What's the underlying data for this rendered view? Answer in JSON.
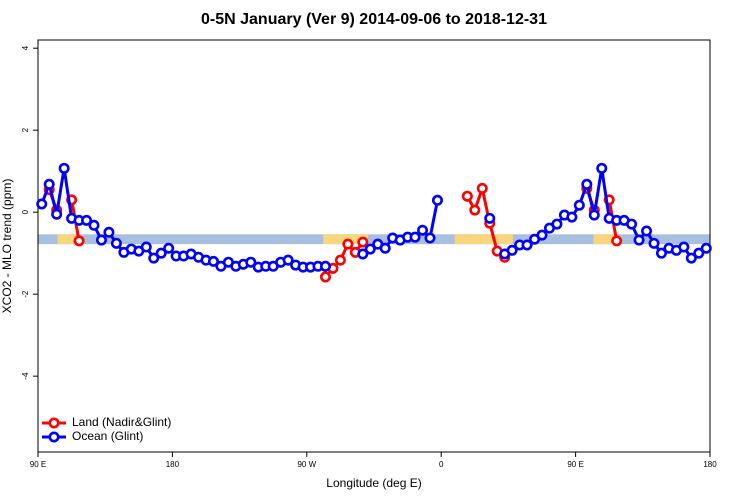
{
  "chart_data": {
    "type": "line",
    "title": "0-5N January (Ver 9)   2014-09-06 to 2018-12-31",
    "x_label": "Longitude (deg E)",
    "y_label": "XCO2 - MLO trend (ppm)",
    "xlim": [
      90,
      540
    ],
    "xticks": [
      {
        "value": 90,
        "label": "90 E"
      },
      {
        "value": 180,
        "label": "180"
      },
      {
        "value": 270,
        "label": "90 W"
      },
      {
        "value": 360,
        "label": "0"
      },
      {
        "value": 450,
        "label": "90 E"
      },
      {
        "value": 540,
        "label": "180"
      }
    ],
    "ylim": [
      -5.85,
      4.2
    ],
    "yticks": [
      -4,
      -2,
      0,
      2,
      4
    ],
    "legend": "bottomleft",
    "surface_band": {
      "ylim": [
        -0.78,
        -0.54
      ],
      "ocean_color": "#a9bfdf",
      "land_color": "#f7d67e",
      "land_lons": [
        [
          103,
          118
        ],
        [
          281,
          311
        ],
        [
          369,
          408
        ],
        [
          462,
          477
        ]
      ]
    },
    "x": [
      92.5,
      97.5,
      102.5,
      107.5,
      112.5,
      117.5,
      122.5,
      127.5,
      132.5,
      137.5,
      142.5,
      147.5,
      152.5,
      157.5,
      162.5,
      167.5,
      172.5,
      177.5,
      182.5,
      187.5,
      192.5,
      197.5,
      202.5,
      207.5,
      212.5,
      217.5,
      222.5,
      227.5,
      232.5,
      237.5,
      242.5,
      247.5,
      252.5,
      257.5,
      262.5,
      267.5,
      272.5,
      277.5,
      282.5,
      287.5,
      292.5,
      297.5,
      302.5,
      307.5,
      312.5,
      317.5,
      322.5,
      327.5,
      332.5,
      337.5,
      342.5,
      347.5,
      352.5,
      357.5,
      362.5,
      367.5,
      372.5,
      377.5,
      382.5,
      387.5,
      392.5,
      397.5,
      402.5,
      407.5,
      412.5,
      417.5,
      422.5,
      427.5,
      432.5,
      437.5,
      442.5,
      447.5,
      452.5,
      457.5,
      462.5,
      467.5,
      472.5,
      477.5,
      482.5,
      487.5,
      492.5,
      497.5,
      502.5,
      507.5,
      512.5,
      517.5,
      522.5,
      527.5,
      532.5,
      537.5
    ],
    "series": [
      {
        "name": "Land (Nadir&Glint)",
        "color": "#ff0000",
        "values": [
          null,
          0.55,
          0.05,
          null,
          0.3,
          -0.7,
          null,
          null,
          null,
          null,
          null,
          null,
          null,
          null,
          null,
          null,
          null,
          null,
          null,
          null,
          null,
          null,
          null,
          null,
          null,
          null,
          null,
          null,
          null,
          null,
          null,
          null,
          null,
          null,
          null,
          null,
          null,
          null,
          -1.58,
          -1.37,
          -1.17,
          -0.78,
          -0.98,
          -0.73,
          null,
          null,
          null,
          null,
          null,
          null,
          null,
          null,
          null,
          null,
          null,
          null,
          null,
          0.39,
          0.05,
          0.58,
          -0.27,
          -0.95,
          -1.1,
          null,
          null,
          null,
          null,
          null,
          null,
          null,
          null,
          null,
          null,
          0.58,
          0.05,
          null,
          0.3,
          -0.7,
          null,
          null,
          null,
          null,
          null,
          null,
          null,
          null,
          null,
          null,
          null,
          null
        ]
      },
      {
        "name": "Ocean (Glint)",
        "color": "#0000ff",
        "values": [
          0.2,
          0.68,
          -0.05,
          1.07,
          -0.15,
          -0.2,
          -0.2,
          -0.32,
          -0.68,
          -0.49,
          -0.76,
          -0.98,
          -0.9,
          -0.95,
          -0.85,
          -1.12,
          -1.0,
          -0.88,
          -1.07,
          -1.07,
          -1.02,
          -1.1,
          -1.17,
          -1.2,
          -1.32,
          -1.22,
          -1.32,
          -1.27,
          -1.22,
          -1.34,
          -1.32,
          -1.32,
          -1.22,
          -1.17,
          -1.29,
          -1.34,
          -1.34,
          -1.32,
          -1.32,
          null,
          null,
          null,
          null,
          -1.02,
          -0.9,
          -0.78,
          -0.88,
          -0.63,
          -0.68,
          -0.61,
          -0.61,
          -0.44,
          -0.63,
          0.29,
          null,
          null,
          null,
          null,
          null,
          null,
          -0.15,
          null,
          -1.02,
          -0.93,
          -0.8,
          -0.8,
          -0.66,
          -0.56,
          -0.39,
          -0.29,
          -0.07,
          -0.12,
          0.17,
          0.68,
          -0.07,
          1.07,
          -0.15,
          -0.2,
          -0.2,
          -0.29,
          -0.68,
          -0.46,
          -0.76,
          -1.0,
          -0.88,
          -0.93,
          -0.85,
          -1.12,
          -1.0,
          -0.88
        ]
      }
    ]
  }
}
